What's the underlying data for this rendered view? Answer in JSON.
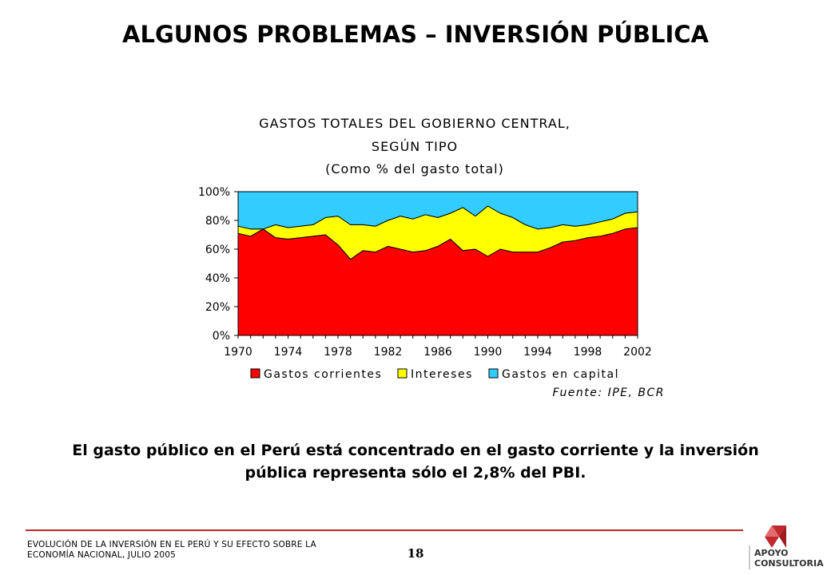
{
  "slide": {
    "title": "ALGUNOS PROBLEMAS – INVERSIÓN PÚBLICA",
    "conclusion_line1": "El gasto público en el Perú está concentrado en el gasto corriente y la inversión",
    "conclusion_line2": "pública representa sólo el 2,8% del PBI.",
    "footer_line1": "EVOLUCIÓN DE LA INVERSIÓN EN EL PERÚ Y SU EFECTO SOBRE LA",
    "footer_line2": "ECONOMÍA NACIONAL, JULIO 2005",
    "page_number": "18",
    "logo_word1": "APOYO",
    "logo_word2": "CONSULTORIA",
    "accent_color": "#c0282d"
  },
  "chart_data": {
    "type": "area",
    "stacked": true,
    "title_lines": [
      "GASTOS TOTALES DEL GOBIERNO CENTRAL,",
      "SEGÚN TIPO",
      "(Como % del gasto total)"
    ],
    "source": "Fuente: IPE, BCR",
    "ylim": [
      0,
      100
    ],
    "yticks": [
      "0%",
      "20%",
      "40%",
      "60%",
      "80%",
      "100%"
    ],
    "ytick_values": [
      0,
      20,
      40,
      60,
      80,
      100
    ],
    "xticks": [
      "1970",
      "1974",
      "1978",
      "1982",
      "1986",
      "1990",
      "1994",
      "1998",
      "2002"
    ],
    "xtick_values": [
      1970,
      1974,
      1978,
      1982,
      1986,
      1990,
      1994,
      1998,
      2002
    ],
    "x": [
      1970,
      1971,
      1972,
      1973,
      1974,
      1975,
      1976,
      1977,
      1978,
      1979,
      1980,
      1981,
      1982,
      1983,
      1984,
      1985,
      1986,
      1987,
      1988,
      1989,
      1990,
      1991,
      1992,
      1993,
      1994,
      1995,
      1996,
      1997,
      1998,
      1999,
      2000,
      2001,
      2002
    ],
    "legend_position": "bottom",
    "series": [
      {
        "name": "Gastos corrientes",
        "color": "#ff0000",
        "values": [
          71,
          69,
          74,
          68,
          67,
          68,
          69,
          70,
          63,
          53,
          59,
          58,
          62,
          60,
          58,
          59,
          62,
          67,
          59,
          60,
          55,
          60,
          58,
          58,
          58,
          61,
          65,
          66,
          68,
          69,
          71,
          74,
          75
        ]
      },
      {
        "name": "Intereses",
        "color": "#ffff00",
        "values": [
          5,
          5,
          0,
          9,
          8,
          8,
          8,
          12,
          20,
          24,
          18,
          18,
          18,
          23,
          23,
          25,
          20,
          18,
          30,
          23,
          35,
          25,
          24,
          19,
          16,
          14,
          12,
          10,
          9,
          10,
          10,
          11,
          11
        ]
      },
      {
        "name": "Gastos en capital",
        "color": "#33ccff",
        "values": [
          24,
          26,
          26,
          23,
          25,
          24,
          23,
          18,
          17,
          23,
          23,
          24,
          20,
          17,
          19,
          16,
          18,
          15,
          11,
          17,
          10,
          15,
          18,
          23,
          26,
          25,
          23,
          24,
          23,
          21,
          19,
          15,
          14
        ]
      }
    ]
  }
}
